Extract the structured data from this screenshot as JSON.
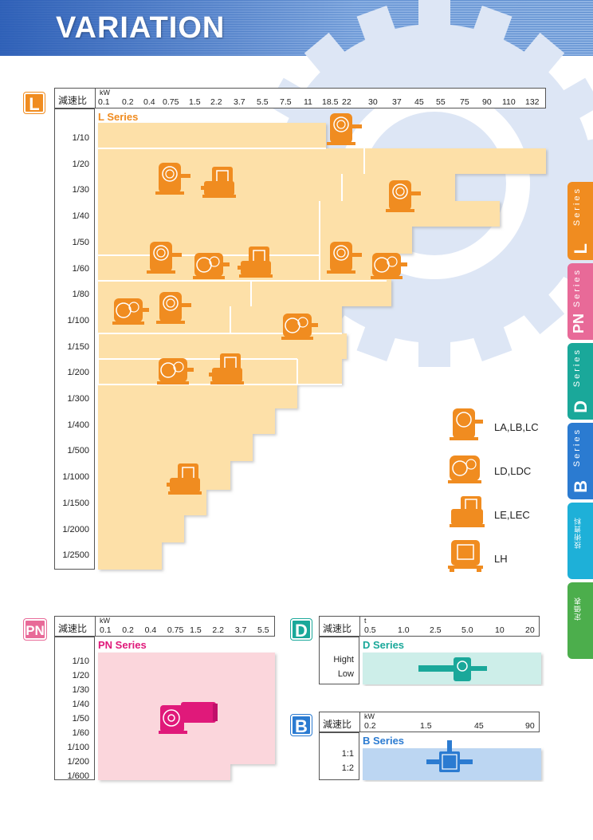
{
  "header": {
    "title": "VARIATION"
  },
  "colors": {
    "l_fill": "#fde0a8",
    "l_icon": "#f08c20",
    "pn_fill": "#fbd6dc",
    "pn_icon": "#e0197a",
    "d_fill": "#cdeee9",
    "d_icon": "#1aa89a",
    "b_fill": "#bcd6f2",
    "b_icon": "#2b7bd1"
  },
  "l_section": {
    "badge": "L",
    "ratio_header": "減速比",
    "kw_unit": "kW",
    "power_ticks": [
      "0.1",
      "0.2",
      "0.4",
      "0.75",
      "1.5",
      "2.2",
      "3.7",
      "5.5",
      "7.5",
      "11",
      "18.5",
      "22",
      "30",
      "37",
      "45",
      "55",
      "75",
      "90",
      "110",
      "132"
    ],
    "series_label": "L Series",
    "ratios": [
      "1/10",
      "1/20",
      "1/30",
      "1/40",
      "1/50",
      "1/60",
      "1/80",
      "1/100",
      "1/150",
      "1/200",
      "1/300",
      "1/400",
      "1/500",
      "1/1000",
      "1/1500",
      "1/2000",
      "1/2500"
    ],
    "legend": [
      {
        "label": "LA,LB,LC",
        "icon": "la-type-gear-icon"
      },
      {
        "label": "LD,LDC",
        "icon": "ld-type-gear-icon"
      },
      {
        "label": "LE,LEC",
        "icon": "le-type-gear-icon"
      },
      {
        "label": "LH",
        "icon": "lh-type-gear-icon"
      }
    ]
  },
  "pn_section": {
    "badge": "PN",
    "ratio_header": "減速比",
    "kw_unit": "kW",
    "power_ticks": [
      "0.1",
      "0.2",
      "0.4",
      "0.75",
      "1.5",
      "2.2",
      "3.7",
      "5.5"
    ],
    "series_label": "PN Series",
    "ratios": [
      "1/10",
      "1/20",
      "1/30",
      "1/40",
      "1/50",
      "1/60",
      "1/100",
      "1/200",
      "1/600"
    ]
  },
  "d_section": {
    "badge": "D",
    "ratio_header": "減速比",
    "unit": "t",
    "ticks": [
      "0.5",
      "1.0",
      "2.5",
      "5.0",
      "10",
      "20"
    ],
    "series_label": "D Series",
    "ratios": [
      "Hight",
      "Low"
    ]
  },
  "b_section": {
    "badge": "B",
    "ratio_header": "減速比",
    "kw_unit": "kW",
    "ticks": [
      "0.2",
      "1.5",
      "45",
      "90"
    ],
    "series_label": "B Series",
    "ratios": [
      "1:1",
      "1:2"
    ]
  },
  "side_tabs": [
    {
      "letter": "L",
      "text": "Series",
      "color": "#f08c20"
    },
    {
      "letter": "PN",
      "text": "Series",
      "color": "#e86a98"
    },
    {
      "letter": "D",
      "text": "Series",
      "color": "#1aa89a"
    },
    {
      "letter": "B",
      "text": "Series",
      "color": "#2b7bd1"
    },
    {
      "letter": "",
      "text": "技術資料",
      "color": "#1eb0d8"
    },
    {
      "letter": "",
      "text": "定価表",
      "color": "#4cae4c"
    }
  ]
}
